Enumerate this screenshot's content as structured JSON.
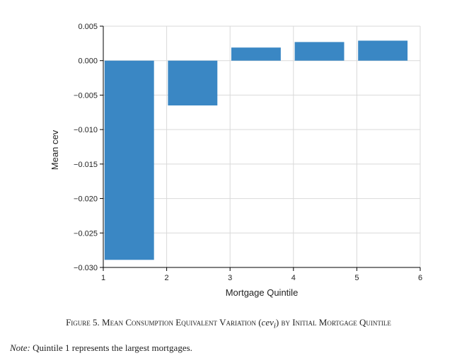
{
  "chart_data": {
    "type": "bar",
    "x": [
      1,
      2,
      3,
      4,
      5
    ],
    "values": [
      -0.0289,
      -0.0065,
      0.0019,
      0.0027,
      0.0029
    ],
    "xlabel": "Mortgage Quintile",
    "ylabel": "Mean cev",
    "xlim": [
      1,
      6
    ],
    "ylim": [
      -0.03,
      0.005
    ],
    "xticks": [
      "1",
      "2",
      "3",
      "4",
      "5",
      "6"
    ],
    "yticks": [
      "0.005",
      "0.000",
      "−0.005",
      "−0.010",
      "−0.015",
      "−0.020",
      "−0.025",
      "−0.030"
    ],
    "grid": true,
    "bar_color": "#3a87c4"
  },
  "caption": {
    "prefix": "Figure 5. Mean Consumption Equivalent Variation (",
    "cev_text": "cev",
    "cev_sub": "i",
    "suffix": ") by Initial Mortgage Quintile"
  },
  "note": {
    "label": "Note:",
    "text": " Quintile 1 represents the largest mortgages."
  }
}
